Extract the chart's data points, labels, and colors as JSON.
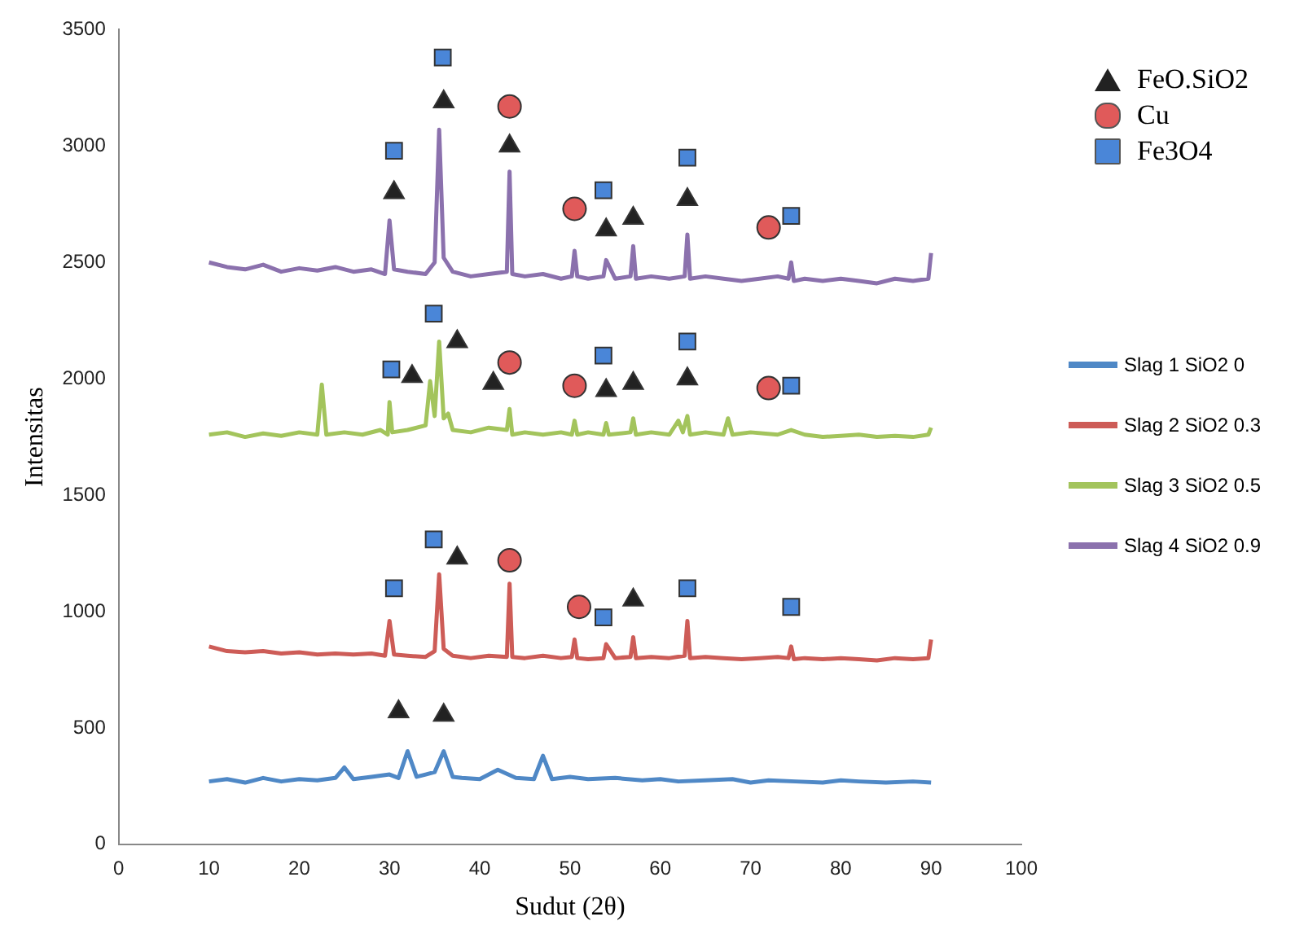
{
  "chart_data": {
    "type": "line",
    "xlabel": "Sudut (2θ)",
    "ylabel": "Intensitas",
    "xlim": [
      0,
      100
    ],
    "xticks": [
      0,
      10,
      20,
      30,
      40,
      50,
      60,
      70,
      80,
      90,
      100
    ],
    "ylim": [
      0,
      3500
    ],
    "yticks": [
      0,
      500,
      1000,
      1500,
      2000,
      2500,
      3000,
      3500
    ],
    "grid": false,
    "legend": "right",
    "marker": "none",
    "line_style": "solid",
    "series": [
      {
        "name": "FeO.SiO2",
        "type": "scatter",
        "marker": "triangle",
        "color": "#222222",
        "x": [
          30.5,
          36,
          43.3,
          54,
          57,
          63,
          32.5,
          37.5,
          41.5,
          54,
          57,
          63,
          37.5,
          57,
          31,
          36
        ],
        "values": [
          2800,
          3190,
          3000,
          2640,
          2690,
          2770,
          2010,
          2160,
          1980,
          1950,
          1980,
          2000,
          1230,
          1050,
          570,
          555
        ]
      },
      {
        "name": "Cu",
        "type": "scatter",
        "marker": "circle",
        "color": "#e05a5a",
        "x": [
          43.3,
          50.5,
          72,
          43.3,
          50.5,
          72,
          43.3,
          51
        ],
        "values": [
          3170,
          2730,
          2650,
          2070,
          1970,
          1960,
          1220,
          1020
        ]
      },
      {
        "name": "Fe3O4",
        "type": "scatter",
        "marker": "square",
        "color": "#4a86d8",
        "x": [
          30.5,
          35.9,
          53.7,
          63,
          74.5,
          30.2,
          34.9,
          53.7,
          63,
          74.5,
          30.5,
          34.9,
          53.7,
          63,
          74.5
        ],
        "values": [
          2980,
          3380,
          2810,
          2950,
          2700,
          2040,
          2280,
          2100,
          2160,
          1970,
          1100,
          1310,
          975,
          1100,
          1020
        ]
      },
      {
        "name": "Slag 1 SiO2 0",
        "color": "#4f88c6",
        "x": [
          10,
          12,
          14,
          16,
          18,
          20,
          22,
          24,
          25,
          26,
          28,
          30,
          31,
          32,
          33,
          34,
          35,
          36,
          37,
          38,
          40,
          42,
          44,
          46,
          47,
          48,
          50,
          52,
          55,
          58,
          60,
          62,
          65,
          68,
          70,
          72,
          75,
          78,
          80,
          82,
          85,
          88,
          90
        ],
        "values": [
          270,
          280,
          265,
          285,
          270,
          280,
          275,
          285,
          330,
          280,
          290,
          300,
          285,
          400,
          290,
          300,
          310,
          400,
          290,
          285,
          280,
          320,
          285,
          280,
          380,
          280,
          290,
          280,
          285,
          275,
          280,
          270,
          275,
          280,
          265,
          275,
          270,
          265,
          275,
          270,
          265,
          270,
          265
        ]
      },
      {
        "name": "Slag 2 SiO2 0.3",
        "color": "#cd5c57",
        "x": [
          10,
          12,
          14,
          16,
          18,
          20,
          22,
          24,
          26,
          28,
          29.5,
          30,
          30.5,
          32,
          34,
          35,
          35.5,
          36,
          37,
          39,
          41,
          43,
          43.3,
          43.6,
          45,
          47,
          49,
          50.2,
          50.5,
          50.8,
          52,
          53.7,
          54,
          55,
          56.7,
          57,
          57.3,
          59,
          61,
          62.7,
          63,
          63.3,
          65,
          67,
          69,
          71,
          73,
          74.2,
          74.5,
          74.8,
          76,
          78,
          80,
          82,
          84,
          86,
          88,
          89.7,
          90
        ],
        "values": [
          850,
          830,
          825,
          830,
          820,
          825,
          815,
          820,
          815,
          820,
          810,
          960,
          815,
          810,
          805,
          830,
          1160,
          840,
          810,
          800,
          810,
          805,
          1120,
          805,
          800,
          810,
          800,
          805,
          880,
          800,
          795,
          800,
          860,
          800,
          805,
          890,
          800,
          805,
          800,
          810,
          960,
          800,
          805,
          800,
          795,
          800,
          805,
          800,
          850,
          795,
          800,
          795,
          800,
          795,
          790,
          800,
          795,
          800,
          880
        ]
      },
      {
        "name": "Slag 3 SiO2 0.5",
        "color": "#a3c45c",
        "x": [
          10,
          12,
          14,
          16,
          18,
          20,
          22,
          22.5,
          23,
          25,
          27,
          29,
          29.8,
          30,
          30.3,
          32,
          34,
          34.5,
          35,
          35.5,
          36,
          36.5,
          37,
          39,
          41,
          43,
          43.3,
          43.6,
          45,
          47,
          49,
          50.2,
          50.5,
          50.8,
          52,
          53.7,
          54,
          54.3,
          56.7,
          57,
          57.3,
          59,
          61,
          62,
          62.5,
          63,
          63.3,
          65,
          67,
          67.5,
          68,
          70,
          73,
          74.5,
          76,
          78,
          80,
          82,
          84,
          86,
          88,
          89.7,
          90
        ],
        "values": [
          1760,
          1770,
          1750,
          1765,
          1755,
          1770,
          1760,
          1975,
          1760,
          1770,
          1760,
          1780,
          1760,
          1900,
          1770,
          1780,
          1800,
          1990,
          1840,
          2160,
          1830,
          1850,
          1780,
          1770,
          1790,
          1780,
          1870,
          1760,
          1770,
          1760,
          1770,
          1760,
          1820,
          1760,
          1770,
          1760,
          1810,
          1760,
          1770,
          1830,
          1760,
          1770,
          1760,
          1820,
          1770,
          1840,
          1760,
          1770,
          1760,
          1830,
          1760,
          1770,
          1760,
          1780,
          1760,
          1750,
          1755,
          1760,
          1750,
          1755,
          1750,
          1760,
          1790
        ]
      },
      {
        "name": "Slag 4 SiO2 0.9",
        "color": "#8b71ad",
        "x": [
          10,
          12,
          14,
          16,
          18,
          20,
          22,
          24,
          26,
          28,
          29.5,
          30,
          30.5,
          32,
          34,
          35,
          35.5,
          36,
          37,
          39,
          41,
          43,
          43.3,
          43.6,
          45,
          47,
          49,
          50.2,
          50.5,
          50.8,
          52,
          53.7,
          54,
          55,
          56.7,
          57,
          57.3,
          59,
          61,
          62.7,
          63,
          63.3,
          65,
          67,
          69,
          71,
          73,
          74.2,
          74.5,
          74.8,
          76,
          78,
          80,
          82,
          84,
          86,
          88,
          89.7,
          90
        ],
        "values": [
          2500,
          2480,
          2470,
          2490,
          2460,
          2475,
          2465,
          2480,
          2460,
          2470,
          2450,
          2680,
          2470,
          2460,
          2450,
          2500,
          3070,
          2520,
          2460,
          2440,
          2450,
          2460,
          2890,
          2450,
          2440,
          2450,
          2430,
          2440,
          2550,
          2440,
          2430,
          2440,
          2510,
          2430,
          2440,
          2570,
          2430,
          2440,
          2430,
          2440,
          2620,
          2430,
          2440,
          2430,
          2420,
          2430,
          2440,
          2430,
          2500,
          2420,
          2430,
          2420,
          2430,
          2420,
          2410,
          2430,
          2420,
          2430,
          2540
        ]
      }
    ]
  }
}
